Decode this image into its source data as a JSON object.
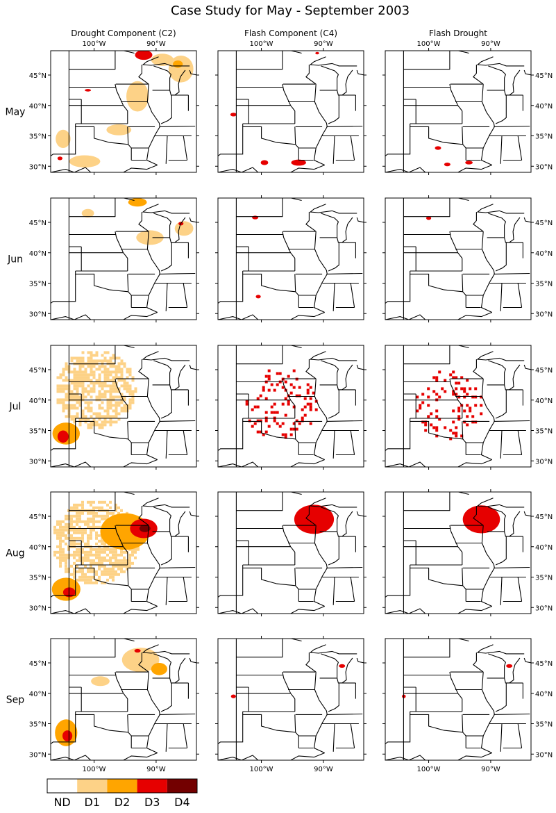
{
  "title": "Case Study for May - September 2003",
  "columns": [
    {
      "label": "Drought Component (C2)"
    },
    {
      "label": "Flash Component (C4)"
    },
    {
      "label": "Flash Drought"
    }
  ],
  "rows": [
    {
      "label": "May"
    },
    {
      "label": "Jun"
    },
    {
      "label": "Jul"
    },
    {
      "label": "Aug"
    },
    {
      "label": "Sep"
    }
  ],
  "colors": {
    "ND": "#ffffff",
    "D1": "#fdd287",
    "D2": "#ffa500",
    "D3": "#e60000",
    "D4": "#730000",
    "state_lines": "#000000"
  },
  "legend": {
    "labels": [
      "ND",
      "D1",
      "D2",
      "D3",
      "D4"
    ]
  },
  "chart_data": {
    "type": "heatmap",
    "title": "Case Study for May - September 2003",
    "panel_grid": {
      "rows": [
        "May",
        "Jun",
        "Jul",
        "Aug",
        "Sep"
      ],
      "columns": [
        "Drought Component (C2)",
        "Flash Component (C4)",
        "Flash Drought"
      ]
    },
    "categories": [
      "ND",
      "D1",
      "D2",
      "D3",
      "D4"
    ],
    "x_axis": {
      "ticks": [
        -100,
        -90
      ],
      "tick_labels": [
        "100°W",
        "90°W"
      ],
      "range": [
        -107,
        -83.5
      ]
    },
    "y_axis": {
      "ticks": [
        30,
        35,
        40,
        45
      ],
      "tick_labels": [
        "30°N",
        "35°N",
        "40°N",
        "45°N"
      ],
      "range": [
        29,
        49
      ]
    },
    "panels": [
      {
        "row": "May",
        "column": "Drought Component (C2)",
        "regions": [
          {
            "category": "D3",
            "lon": -92,
            "lat": 48.3,
            "rx": 1.4,
            "ry": 0.8
          },
          {
            "category": "D1",
            "lon": -89,
            "lat": 47.5,
            "rx": 1.8,
            "ry": 1.0
          },
          {
            "category": "D1",
            "lon": -86,
            "lat": 46.0,
            "rx": 2.0,
            "ry": 2.2
          },
          {
            "category": "D2",
            "lon": -86.5,
            "lat": 46.8,
            "rx": 0.8,
            "ry": 0.6
          },
          {
            "category": "D1",
            "lon": -93,
            "lat": 41.5,
            "rx": 1.8,
            "ry": 2.5
          },
          {
            "category": "D1",
            "lon": -96,
            "lat": 36.0,
            "rx": 2.0,
            "ry": 0.9
          },
          {
            "category": "D1",
            "lon": -101.5,
            "lat": 30.8,
            "rx": 2.5,
            "ry": 1.0
          },
          {
            "category": "D1",
            "lon": -105,
            "lat": 34.5,
            "rx": 1.2,
            "ry": 1.5
          },
          {
            "category": "D3",
            "lon": -105.5,
            "lat": 31.3,
            "rx": 0.4,
            "ry": 0.3
          },
          {
            "category": "D3",
            "lon": -101,
            "lat": 42.5,
            "rx": 0.5,
            "ry": 0.2
          }
        ]
      },
      {
        "row": "May",
        "column": "Flash Component (C4)",
        "regions": [
          {
            "category": "D3",
            "lon": -94,
            "lat": 30.6,
            "rx": 1.2,
            "ry": 0.5
          },
          {
            "category": "D3",
            "lon": -99.5,
            "lat": 30.6,
            "rx": 0.6,
            "ry": 0.4
          },
          {
            "category": "D3",
            "lon": -104.5,
            "lat": 38.5,
            "rx": 0.5,
            "ry": 0.3
          },
          {
            "category": "D3",
            "lon": -91,
            "lat": 48.6,
            "rx": 0.3,
            "ry": 0.2
          }
        ]
      },
      {
        "row": "May",
        "column": "Flash Drought",
        "regions": [
          {
            "category": "D3",
            "lon": -97,
            "lat": 30.3,
            "rx": 0.5,
            "ry": 0.3
          },
          {
            "category": "D3",
            "lon": -93.5,
            "lat": 30.6,
            "rx": 0.6,
            "ry": 0.3
          },
          {
            "category": "D3",
            "lon": -98.5,
            "lat": 33.0,
            "rx": 0.5,
            "ry": 0.3
          }
        ]
      },
      {
        "row": "Jun",
        "column": "Drought Component (C2)",
        "regions": [
          {
            "category": "D2",
            "lon": -93,
            "lat": 48.3,
            "rx": 1.5,
            "ry": 0.7
          },
          {
            "category": "D1",
            "lon": -91,
            "lat": 42.5,
            "rx": 2.2,
            "ry": 1.2
          },
          {
            "category": "D1",
            "lon": -85.5,
            "lat": 44.0,
            "rx": 1.5,
            "ry": 1.2
          },
          {
            "category": "D3",
            "lon": -86,
            "lat": 44.8,
            "rx": 0.4,
            "ry": 0.3
          },
          {
            "category": "D1",
            "lon": -101,
            "lat": 46.5,
            "rx": 1.0,
            "ry": 0.7
          }
        ]
      },
      {
        "row": "Jun",
        "column": "Flash Component (C4)",
        "regions": [
          {
            "category": "D3",
            "lon": -101,
            "lat": 45.8,
            "rx": 0.5,
            "ry": 0.3
          },
          {
            "category": "D3",
            "lon": -100.5,
            "lat": 32.8,
            "rx": 0.4,
            "ry": 0.3
          }
        ]
      },
      {
        "row": "Jun",
        "column": "Flash Drought",
        "regions": [
          {
            "category": "D3",
            "lon": -100,
            "lat": 45.7,
            "rx": 0.4,
            "ry": 0.3
          }
        ]
      },
      {
        "row": "Jul",
        "column": "Drought Component (C2)",
        "regions": [
          {
            "category": "D1",
            "lon": -100,
            "lat": 42.0,
            "rx": 6.5,
            "ry": 6.5
          },
          {
            "category": "D2",
            "lon": -104.5,
            "lat": 34.5,
            "rx": 2.2,
            "ry": 1.8
          },
          {
            "category": "D3",
            "lon": -105,
            "lat": 34.0,
            "rx": 0.9,
            "ry": 1.0
          }
        ]
      },
      {
        "row": "Jul",
        "column": "Flash Component (C4)",
        "regions": [
          {
            "category": "D3",
            "lon": -97,
            "lat": 39.5,
            "rx": 6.0,
            "ry": 6.0
          }
        ]
      },
      {
        "row": "Jul",
        "column": "Flash Drought",
        "regions": [
          {
            "category": "D3",
            "lon": -97,
            "lat": 39.5,
            "rx": 5.5,
            "ry": 5.8
          }
        ]
      },
      {
        "row": "Aug",
        "column": "Drought Component (C2)",
        "regions": [
          {
            "category": "D1",
            "lon": -100,
            "lat": 41.0,
            "rx": 7.0,
            "ry": 7.0
          },
          {
            "category": "D2",
            "lon": -95,
            "lat": 42.5,
            "rx": 4.0,
            "ry": 3.0
          },
          {
            "category": "D3",
            "lon": -92,
            "lat": 43.0,
            "rx": 2.2,
            "ry": 1.6
          },
          {
            "category": "D4",
            "lon": -91.8,
            "lat": 43.0,
            "rx": 0.9,
            "ry": 0.6
          },
          {
            "category": "D2",
            "lon": -104.5,
            "lat": 33.0,
            "rx": 2.3,
            "ry": 1.9
          },
          {
            "category": "D3",
            "lon": -104,
            "lat": 32.5,
            "rx": 1.0,
            "ry": 0.8
          }
        ]
      },
      {
        "row": "Aug",
        "column": "Flash Component (C4)",
        "regions": [
          {
            "category": "D3",
            "lon": -91.5,
            "lat": 44.5,
            "rx": 3.2,
            "ry": 2.4
          }
        ]
      },
      {
        "row": "Aug",
        "column": "Flash Drought",
        "regions": [
          {
            "category": "D3",
            "lon": -91.5,
            "lat": 44.5,
            "rx": 3.0,
            "ry": 2.3
          }
        ]
      },
      {
        "row": "Sep",
        "column": "Drought Component (C2)",
        "regions": [
          {
            "category": "D1",
            "lon": -92.5,
            "lat": 45.5,
            "rx": 3.0,
            "ry": 2.0
          },
          {
            "category": "D2",
            "lon": -89.5,
            "lat": 44.0,
            "rx": 1.3,
            "ry": 1.0
          },
          {
            "category": "D3",
            "lon": -93,
            "lat": 47.0,
            "rx": 0.5,
            "ry": 0.3
          },
          {
            "category": "D2",
            "lon": -104.5,
            "lat": 33.5,
            "rx": 1.8,
            "ry": 2.2
          },
          {
            "category": "D3",
            "lon": -104.3,
            "lat": 33.0,
            "rx": 0.8,
            "ry": 0.9
          },
          {
            "category": "D1",
            "lon": -99,
            "lat": 42.0,
            "rx": 1.5,
            "ry": 0.8
          }
        ]
      },
      {
        "row": "Sep",
        "column": "Flash Component (C4)",
        "regions": [
          {
            "category": "D3",
            "lon": -87,
            "lat": 44.5,
            "rx": 0.5,
            "ry": 0.3
          },
          {
            "category": "D3",
            "lon": -104.5,
            "lat": 39.5,
            "rx": 0.4,
            "ry": 0.3
          }
        ]
      },
      {
        "row": "Sep",
        "column": "Flash Drought",
        "regions": [
          {
            "category": "D3",
            "lon": -87,
            "lat": 44.5,
            "rx": 0.5,
            "ry": 0.3
          },
          {
            "category": "D3",
            "lon": -104,
            "lat": 39.5,
            "rx": 0.3,
            "ry": 0.3
          }
        ]
      }
    ],
    "grid": false,
    "legend_position": "bottom-left"
  }
}
